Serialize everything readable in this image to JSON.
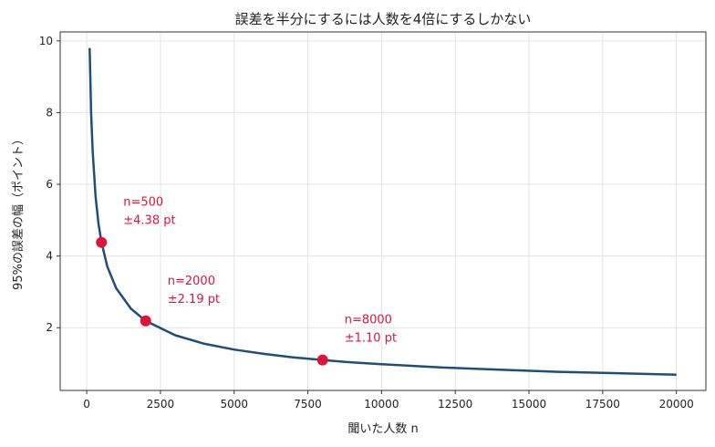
{
  "chart_data": {
    "type": "line",
    "title": "誤差を半分にするには人数を4倍にするしかない",
    "xlabel": "聞いた人数 n",
    "ylabel": "95%の誤差の幅（ポイント）",
    "xlim": [
      -900,
      21000
    ],
    "ylim": [
      0.25,
      10.25
    ],
    "xticks": [
      0,
      2500,
      5000,
      7500,
      10000,
      12500,
      15000,
      17500,
      20000
    ],
    "xtick_labels": [
      "0",
      "2500",
      "5000",
      "7500",
      "10000",
      "12500",
      "15000",
      "17500",
      "20000"
    ],
    "yticks": [
      2,
      4,
      6,
      8,
      10
    ],
    "ytick_labels": [
      "2",
      "4",
      "6",
      "8",
      "10"
    ],
    "grid": true,
    "series": [
      {
        "color": "#1f4e79",
        "x": [
          100,
          150,
          200,
          300,
          400,
          500,
          700,
          1000,
          1500,
          2000,
          3000,
          4000,
          5000,
          6000,
          7000,
          8000,
          9000,
          10000,
          12000,
          14000,
          16000,
          18000,
          20000
        ],
        "y": [
          9.8,
          8.0,
          6.93,
          5.66,
          4.9,
          4.38,
          3.7,
          3.1,
          2.53,
          2.19,
          1.79,
          1.55,
          1.39,
          1.27,
          1.17,
          1.1,
          1.03,
          0.98,
          0.89,
          0.83,
          0.77,
          0.73,
          0.69
        ]
      }
    ],
    "highlights": {
      "color": "#dc143c",
      "points": [
        {
          "x": 500,
          "y": 4.38,
          "line1": "n=500",
          "line2": "±4.38 pt"
        },
        {
          "x": 2000,
          "y": 2.19,
          "line1": "n=2000",
          "line2": "±2.19 pt"
        },
        {
          "x": 8000,
          "y": 1.1,
          "line1": "n=8000",
          "line2": "±1.10 pt"
        }
      ]
    }
  }
}
